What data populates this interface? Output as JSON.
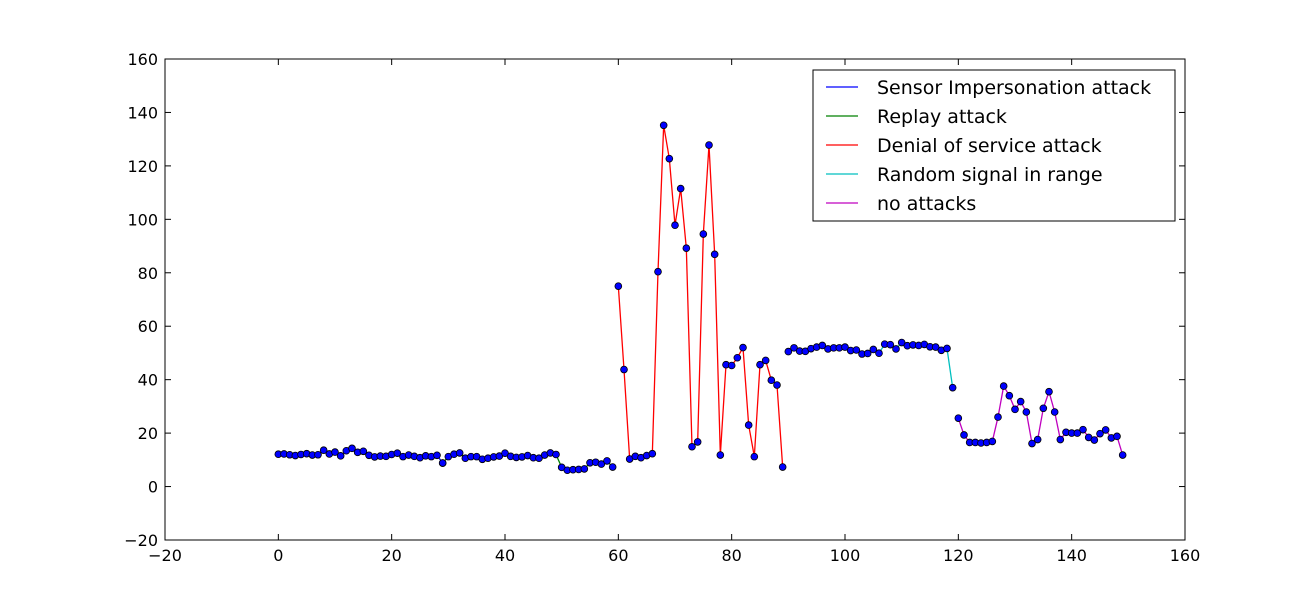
{
  "chart_data": {
    "type": "line",
    "title": "",
    "xlabel": "",
    "ylabel": "",
    "xlim": [
      -20,
      160
    ],
    "ylim": [
      -20,
      160
    ],
    "xticks": [
      -20,
      0,
      20,
      40,
      60,
      80,
      100,
      120,
      140,
      160
    ],
    "yticks": [
      -20,
      0,
      20,
      40,
      60,
      80,
      100,
      120,
      140,
      160
    ],
    "xtick_labels": [
      "−20",
      "0",
      "20",
      "40",
      "60",
      "80",
      "100",
      "120",
      "140",
      "160"
    ],
    "ytick_labels": [
      "−20",
      "0",
      "20",
      "40",
      "60",
      "80",
      "100",
      "120",
      "140",
      "160"
    ],
    "grid": false,
    "legend_position": "top-right",
    "marker_color": "#0000ff",
    "series": [
      {
        "name": "Sensor Impersonation attack",
        "color": "#0000ff",
        "x": [
          0,
          1,
          2,
          3,
          4,
          5,
          6,
          7,
          8,
          9,
          10,
          11,
          12,
          13,
          14,
          15,
          16,
          17,
          18,
          19,
          20,
          21,
          22,
          23,
          24,
          25,
          26,
          27,
          28,
          29
        ],
        "y": [
          12.1,
          12.2,
          11.9,
          11.6,
          12.0,
          12.3,
          11.8,
          11.9,
          13.6,
          12.2,
          12.9,
          11.5,
          13.4,
          14.3,
          12.8,
          13.2,
          11.7,
          11.1,
          11.4,
          11.3,
          12.0,
          12.5,
          11.2,
          11.8,
          11.3,
          10.8,
          11.5,
          11.2,
          11.7,
          8.8
        ]
      },
      {
        "name": "Replay attack",
        "color": "#008000",
        "x": [
          29,
          30,
          31,
          32,
          33,
          34,
          35,
          36,
          37,
          38,
          39,
          40,
          41,
          42,
          43,
          44,
          45,
          46,
          47,
          48,
          49,
          50,
          51,
          52,
          53,
          54,
          55,
          56,
          57,
          58,
          59
        ],
        "y": [
          8.8,
          11.2,
          12.1,
          12.6,
          10.6,
          11.2,
          11.2,
          10.2,
          10.6,
          11.1,
          11.4,
          12.5,
          11.3,
          10.9,
          11.1,
          11.6,
          10.8,
          10.6,
          11.8,
          12.6,
          12.0,
          7.2,
          6.1,
          6.3,
          6.4,
          6.6,
          8.9,
          9.1,
          8.4,
          9.6,
          7.3
        ]
      },
      {
        "name": "Denial of service attack",
        "color": "#ff0000",
        "x": [
          60,
          61,
          62,
          63,
          64,
          65,
          66,
          67,
          68,
          69,
          70,
          71,
          72,
          73,
          74,
          75,
          76,
          77,
          78,
          79,
          80,
          81,
          82,
          83,
          84,
          85,
          86,
          87,
          88,
          89
        ],
        "y": [
          75.0,
          43.8,
          10.3,
          11.3,
          10.8,
          11.6,
          12.3,
          80.4,
          135.2,
          122.7,
          97.8,
          111.5,
          89.2,
          14.9,
          16.7,
          94.5,
          127.8,
          86.9,
          11.8,
          45.6,
          45.3,
          48.2,
          52.0,
          23.0,
          11.2,
          45.6,
          47.2,
          39.8,
          38.0,
          7.3
        ]
      },
      {
        "name": "Random signal in range",
        "color": "#00bfbf",
        "x": [
          90,
          91,
          92,
          93,
          94,
          95,
          96,
          97,
          98,
          99,
          100,
          101,
          102,
          103,
          104,
          105,
          106,
          107,
          108,
          109,
          110,
          111,
          112,
          113,
          114,
          115,
          116,
          117,
          118,
          119
        ],
        "y": [
          50.5,
          51.9,
          50.7,
          50.6,
          51.6,
          52.2,
          52.8,
          51.5,
          51.9,
          51.9,
          52.2,
          50.9,
          51.1,
          49.6,
          49.8,
          51.3,
          49.9,
          53.3,
          53.1,
          51.5,
          53.9,
          52.7,
          53.0,
          52.8,
          53.2,
          52.3,
          52.2,
          51.0,
          51.7,
          37.0
        ]
      },
      {
        "name": "no attacks",
        "color": "#bf00bf",
        "x": [
          120,
          121,
          122,
          123,
          124,
          125,
          126,
          127,
          128,
          129,
          130,
          131,
          132,
          133,
          134,
          135,
          136,
          137,
          138,
          139,
          140,
          141,
          142,
          143,
          144,
          145,
          146,
          147,
          148,
          149
        ],
        "y": [
          25.6,
          19.3,
          16.5,
          16.5,
          16.3,
          16.5,
          16.9,
          26.0,
          37.6,
          34.0,
          28.9,
          31.8,
          27.9,
          16.1,
          17.6,
          29.3,
          35.5,
          27.9,
          17.6,
          20.3,
          20.0,
          20.0,
          21.3,
          18.4,
          17.4,
          19.8,
          21.2,
          18.2,
          18.8,
          11.8
        ]
      }
    ]
  }
}
